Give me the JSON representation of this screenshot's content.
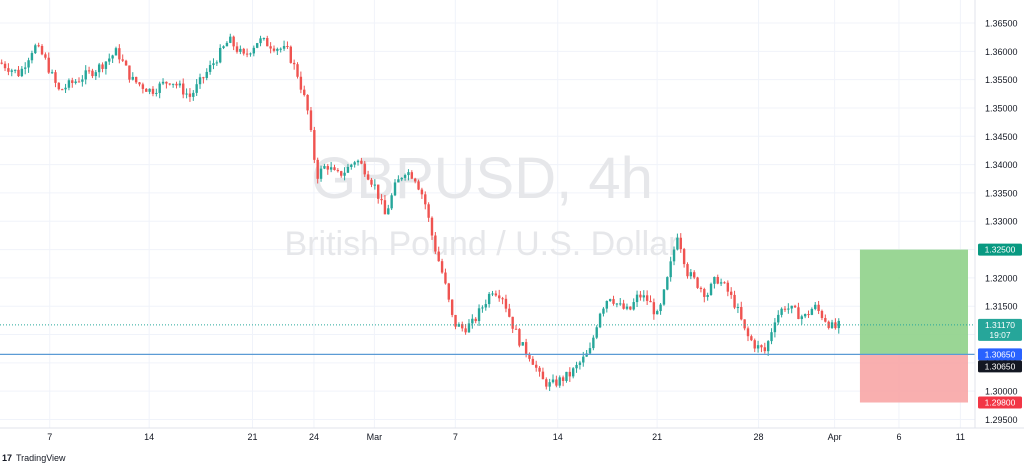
{
  "chart_data": {
    "type": "candlestick",
    "symbol": "GBPUSD, 4h",
    "description": "British Pound / U.S. Dollar",
    "x_tick_labels": [
      "7",
      "14",
      "21",
      "24",
      "Mar",
      "7",
      "14",
      "21",
      "28",
      "Apr",
      "6",
      "11"
    ],
    "y_ticks": [
      1.365,
      1.36,
      1.355,
      1.35,
      1.345,
      1.34,
      1.335,
      1.33,
      1.325,
      1.32,
      1.315,
      1.31,
      1.305,
      1.3,
      1.295
    ],
    "y_tick_labels": [
      "1.36500",
      "1.36000",
      "1.35500",
      "1.35000",
      "1.34500",
      "1.34000",
      "1.33500",
      "1.33000",
      "1.32500",
      "1.32000",
      "1.31500",
      "1.31000",
      "1.30500",
      "1.30000",
      "1.29500"
    ],
    "ylim": [
      1.2935,
      1.368
    ],
    "price_path": [
      [
        0,
        1.358
      ],
      [
        0.02,
        1.356
      ],
      [
        0.035,
        1.361
      ],
      [
        0.045,
        1.359
      ],
      [
        0.06,
        1.353
      ],
      [
        0.08,
        1.355
      ],
      [
        0.1,
        1.357
      ],
      [
        0.12,
        1.36
      ],
      [
        0.135,
        1.355
      ],
      [
        0.155,
        1.353
      ],
      [
        0.175,
        1.355
      ],
      [
        0.195,
        1.352
      ],
      [
        0.215,
        1.357
      ],
      [
        0.235,
        1.362
      ],
      [
        0.25,
        1.359
      ],
      [
        0.265,
        1.362
      ],
      [
        0.28,
        1.361
      ],
      [
        0.295,
        1.36
      ],
      [
        0.305,
        1.356
      ],
      [
        0.315,
        1.35
      ],
      [
        0.325,
        1.338
      ],
      [
        0.335,
        1.34
      ],
      [
        0.345,
        1.338
      ],
      [
        0.355,
        1.339
      ],
      [
        0.365,
        1.341
      ],
      [
        0.375,
        1.339
      ],
      [
        0.385,
        1.336
      ],
      [
        0.395,
        1.331
      ],
      [
        0.405,
        1.336
      ],
      [
        0.415,
        1.339
      ],
      [
        0.425,
        1.338
      ],
      [
        0.435,
        1.334
      ],
      [
        0.445,
        1.326
      ],
      [
        0.455,
        1.32
      ],
      [
        0.465,
        1.312
      ],
      [
        0.475,
        1.311
      ],
      [
        0.485,
        1.312
      ],
      [
        0.495,
        1.315
      ],
      [
        0.505,
        1.318
      ],
      [
        0.515,
        1.317
      ],
      [
        0.525,
        1.312
      ],
      [
        0.535,
        1.308
      ],
      [
        0.545,
        1.306
      ],
      [
        0.555,
        1.302
      ],
      [
        0.565,
        1.301
      ],
      [
        0.575,
        1.302
      ],
      [
        0.585,
        1.303
      ],
      [
        0.595,
        1.305
      ],
      [
        0.605,
        1.307
      ],
      [
        0.615,
        1.314
      ],
      [
        0.625,
        1.317
      ],
      [
        0.635,
        1.315
      ],
      [
        0.645,
        1.314
      ],
      [
        0.655,
        1.317
      ],
      [
        0.665,
        1.316
      ],
      [
        0.675,
        1.313
      ],
      [
        0.685,
        1.32
      ],
      [
        0.695,
        1.328
      ],
      [
        0.705,
        1.321
      ],
      [
        0.715,
        1.319
      ],
      [
        0.725,
        1.317
      ],
      [
        0.735,
        1.32
      ],
      [
        0.745,
        1.318
      ],
      [
        0.755,
        1.315
      ],
      [
        0.765,
        1.31
      ],
      [
        0.775,
        1.308
      ],
      [
        0.785,
        1.307
      ],
      [
        0.795,
        1.313
      ],
      [
        0.805,
        1.315
      ],
      [
        0.815,
        1.314
      ],
      [
        0.825,
        1.313
      ],
      [
        0.835,
        1.315
      ],
      [
        0.845,
        1.313
      ],
      [
        0.855,
        1.311
      ],
      [
        0.862,
        1.3117
      ]
    ],
    "horizontal_line": 1.3065,
    "last_price_line": 1.3117,
    "price_tags": [
      {
        "label": "1.32500",
        "value": 1.325,
        "color": "#089981"
      },
      {
        "label": "1.31170",
        "value": 1.3117,
        "color": "#26a69a",
        "sub": "19:07"
      },
      {
        "label": "1.30650",
        "value": 1.3065,
        "color": "#2962ff"
      },
      {
        "label": "1.30650",
        "value": 1.3065,
        "color": "#131722"
      },
      {
        "label": "1.29800",
        "value": 1.298,
        "color": "#f23645"
      }
    ],
    "position_tool": {
      "entry": 1.3065,
      "target": 1.325,
      "stop": 1.298,
      "profit_color": "#8fd28a",
      "loss_color": "#f8a6a6"
    },
    "colors": {
      "up": "#26a69a",
      "down": "#ef5350",
      "grid": "#f0f3fa",
      "hline": "#5b9bd5",
      "watermark": "#e6e7ea"
    },
    "legend": "none",
    "grid": true
  },
  "footer": {
    "brand_mark": "17",
    "brand": "TradingView"
  }
}
